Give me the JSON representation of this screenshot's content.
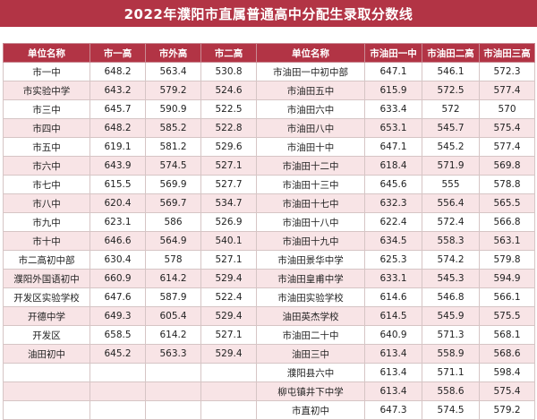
{
  "title": "2022年濮阳市直属普通高中分配生录取分数线",
  "headers": [
    "单位名称",
    "市一高",
    "市外高",
    "市二高",
    "单位名称",
    "市油田一中",
    "市油田二高",
    "市油田三高"
  ],
  "rows": [
    [
      "市一中",
      "648.2",
      "563.4",
      "530.8",
      "市油田一中初中部",
      "647.1",
      "546.1",
      "572.3"
    ],
    [
      "市实验中学",
      "643.2",
      "579.2",
      "524.6",
      "市油田五中",
      "615.9",
      "572.5",
      "577.4"
    ],
    [
      "市三中",
      "645.7",
      "590.9",
      "522.5",
      "市油田六中",
      "633.4",
      "572",
      "570"
    ],
    [
      "市四中",
      "648.2",
      "585.2",
      "522.8",
      "市油田八中",
      "653.1",
      "545.7",
      "575.4"
    ],
    [
      "市五中",
      "619.1",
      "581.2",
      "529.6",
      "市油田十中",
      "647.1",
      "545.2",
      "577.4"
    ],
    [
      "市六中",
      "643.9",
      "574.5",
      "527.1",
      "市油田十二中",
      "618.4",
      "571.9",
      "569.8"
    ],
    [
      "市七中",
      "615.5",
      "569.9",
      "527.7",
      "市油田十三中",
      "645.6",
      "555",
      "578.8"
    ],
    [
      "市八中",
      "620.4",
      "569.7",
      "534.7",
      "市油田十七中",
      "632.3",
      "556.4",
      "565.5"
    ],
    [
      "市九中",
      "623.1",
      "586",
      "526.9",
      "市油田十八中",
      "622.4",
      "572.4",
      "566.8"
    ],
    [
      "市十中",
      "646.6",
      "564.9",
      "540.1",
      "市油田十九中",
      "634.5",
      "558.3",
      "563.1"
    ],
    [
      "市二高初中部",
      "630.4",
      "578",
      "527.1",
      "市油田景华中学",
      "625.3",
      "574.2",
      "579.8"
    ],
    [
      "濮阳外国语初中",
      "660.9",
      "614.2",
      "529.4",
      "市油田皇甫中学",
      "633.1",
      "545.3",
      "594.9"
    ],
    [
      "开发区实验学校",
      "647.6",
      "587.9",
      "522.4",
      "市油田实验学校",
      "614.6",
      "546.8",
      "566.1"
    ],
    [
      "开德中学",
      "649.3",
      "605.4",
      "529.4",
      "油田英杰学校",
      "614.5",
      "545.9",
      "575.5"
    ],
    [
      "开发区",
      "658.5",
      "614.2",
      "527.1",
      "市油田二十中",
      "640.9",
      "571.3",
      "568.1"
    ],
    [
      "油田初中",
      "645.2",
      "563.3",
      "529.4",
      "油田三中",
      "613.4",
      "558.9",
      "568.6"
    ],
    [
      "",
      "",
      "",
      "",
      "濮阳县六中",
      "613.4",
      "571.1",
      "598.4"
    ],
    [
      "",
      "",
      "",
      "",
      "柳屯镇井下中学",
      "613.4",
      "558.6",
      "575.4"
    ],
    [
      "",
      "",
      "",
      "",
      "市直初中",
      "647.3",
      "574.5",
      "579.2"
    ]
  ]
}
